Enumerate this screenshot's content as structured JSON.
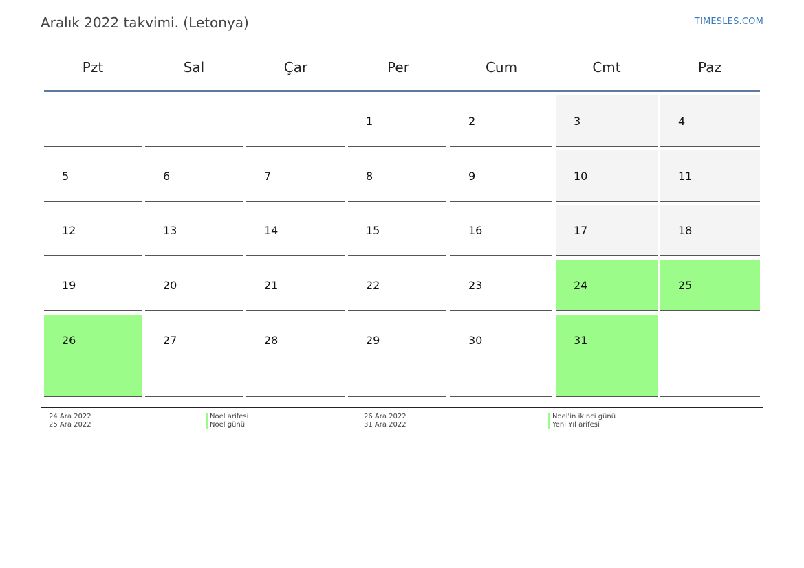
{
  "header": {
    "title": "Aralık 2022 takvimi. (Letonya)",
    "brand": "TIMESLES.COM"
  },
  "colors": {
    "holiday": "#9cfc8a",
    "weekend": "#f4f4f4",
    "header_rule": "#5b7a9e",
    "brand_link": "#3a7ab8"
  },
  "weekdays": [
    "Pzt",
    "Sal",
    "Çar",
    "Per",
    "Cum",
    "Cmt",
    "Paz"
  ],
  "weeks": [
    [
      {
        "day": "",
        "type": "empty"
      },
      {
        "day": "",
        "type": "empty"
      },
      {
        "day": "",
        "type": "empty"
      },
      {
        "day": "1",
        "type": "normal"
      },
      {
        "day": "2",
        "type": "normal"
      },
      {
        "day": "3",
        "type": "weekend"
      },
      {
        "day": "4",
        "type": "weekend"
      }
    ],
    [
      {
        "day": "5",
        "type": "normal"
      },
      {
        "day": "6",
        "type": "normal"
      },
      {
        "day": "7",
        "type": "normal"
      },
      {
        "day": "8",
        "type": "normal"
      },
      {
        "day": "9",
        "type": "normal"
      },
      {
        "day": "10",
        "type": "weekend"
      },
      {
        "day": "11",
        "type": "weekend"
      }
    ],
    [
      {
        "day": "12",
        "type": "normal"
      },
      {
        "day": "13",
        "type": "normal"
      },
      {
        "day": "14",
        "type": "normal"
      },
      {
        "day": "15",
        "type": "normal"
      },
      {
        "day": "16",
        "type": "normal"
      },
      {
        "day": "17",
        "type": "weekend"
      },
      {
        "day": "18",
        "type": "weekend"
      }
    ],
    [
      {
        "day": "19",
        "type": "normal"
      },
      {
        "day": "20",
        "type": "normal"
      },
      {
        "day": "21",
        "type": "normal"
      },
      {
        "day": "22",
        "type": "normal"
      },
      {
        "day": "23",
        "type": "normal"
      },
      {
        "day": "24",
        "type": "holiday"
      },
      {
        "day": "25",
        "type": "holiday"
      }
    ],
    [
      {
        "day": "26",
        "type": "holiday"
      },
      {
        "day": "27",
        "type": "normal"
      },
      {
        "day": "28",
        "type": "normal"
      },
      {
        "day": "29",
        "type": "normal"
      },
      {
        "day": "30",
        "type": "normal"
      },
      {
        "day": "31",
        "type": "holiday"
      },
      {
        "day": "",
        "type": "empty"
      }
    ]
  ],
  "legend": [
    {
      "date": "24 Ara 2022",
      "name": "Noel arifesi"
    },
    {
      "date": "25 Ara 2022",
      "name": "Noel günü"
    },
    {
      "date": "26 Ara 2022",
      "name": "Noel'in ikinci günü"
    },
    {
      "date": "31 Ara 2022",
      "name": "Yeni Yıl arifesi"
    }
  ]
}
